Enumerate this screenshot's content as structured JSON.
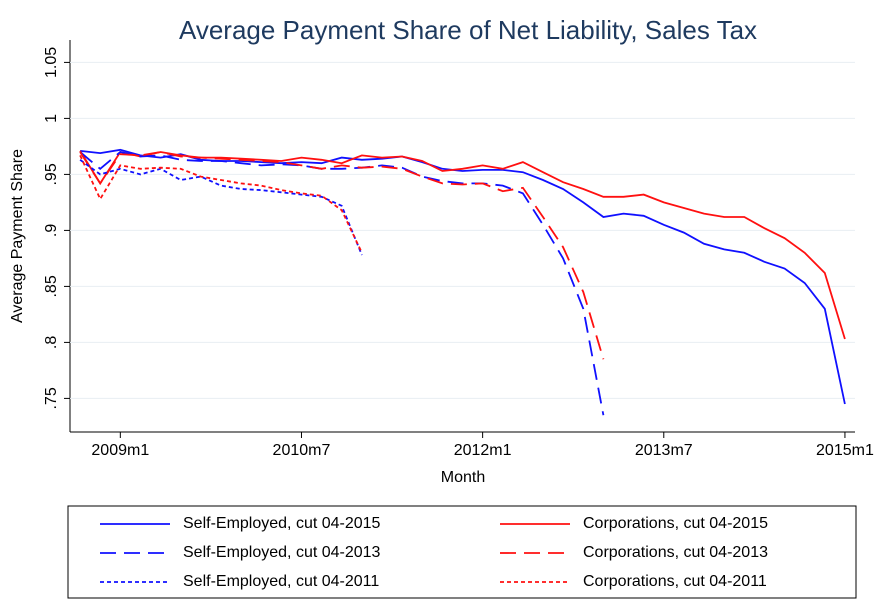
{
  "chart_data": {
    "type": "line",
    "title": "Average Payment Share of Net Liability, Sales Tax",
    "x_label": "Month",
    "y_label": "Average Payment Share",
    "x": [
      "2008m9",
      "2008m11",
      "2009m1",
      "2009m3",
      "2009m5",
      "2009m7",
      "2009m9",
      "2009m11",
      "2010m1",
      "2010m3",
      "2010m5",
      "2010m7",
      "2010m9",
      "2010m11",
      "2011m1",
      "2011m3",
      "2011m5",
      "2011m7",
      "2011m9",
      "2011m11",
      "2012m1",
      "2012m3",
      "2012m5",
      "2012m7",
      "2012m9",
      "2012m11",
      "2013m1",
      "2013m3",
      "2013m5",
      "2013m7",
      "2013m9",
      "2013m11",
      "2014m1",
      "2014m3",
      "2014m5",
      "2014m7",
      "2014m9",
      "2014m11",
      "2015m1"
    ],
    "xlim": [
      "2008m8",
      "2015m2"
    ],
    "xticks": [
      "2009m1",
      "2010m7",
      "2012m1",
      "2013m7",
      "2015m1"
    ],
    "ylim": [
      0.72,
      1.07
    ],
    "yticks": [
      {
        "value": 0.75,
        "label": ".75"
      },
      {
        "value": 0.8,
        "label": ".8"
      },
      {
        "value": 0.85,
        "label": ".85"
      },
      {
        "value": 0.9,
        "label": ".9"
      },
      {
        "value": 0.95,
        "label": ".95"
      },
      1,
      {
        "value": 1.05,
        "label": "1.05"
      }
    ],
    "grid": true,
    "legend_position": "bottom",
    "series": [
      {
        "name": "Self-Employed, cut 04-2015",
        "color": "#1010ff",
        "line_style": "solid",
        "values": [
          0.971,
          0.969,
          0.972,
          0.967,
          0.965,
          0.968,
          0.963,
          0.962,
          0.962,
          0.961,
          0.96,
          0.961,
          0.96,
          0.965,
          0.963,
          0.964,
          0.966,
          0.961,
          0.955,
          0.953,
          0.954,
          0.954,
          0.952,
          0.945,
          0.937,
          0.925,
          0.912,
          0.915,
          0.913,
          0.905,
          0.898,
          0.888,
          0.883,
          0.88,
          0.872,
          0.866,
          0.853,
          0.83,
          0.745
        ]
      },
      {
        "name": "Corporations, cut 04-2015",
        "color": "#ff1010",
        "line_style": "solid",
        "values": [
          0.971,
          0.942,
          0.97,
          0.966,
          0.97,
          0.967,
          0.965,
          0.965,
          0.964,
          0.963,
          0.962,
          0.965,
          0.963,
          0.96,
          0.967,
          0.965,
          0.966,
          0.962,
          0.953,
          0.955,
          0.958,
          0.955,
          0.961,
          0.952,
          0.943,
          0.937,
          0.93,
          0.93,
          0.932,
          0.925,
          0.92,
          0.915,
          0.912,
          0.912,
          0.902,
          0.893,
          0.88,
          0.862,
          0.803
        ]
      },
      {
        "name": "Self-Employed, cut 04-2013",
        "color": "#1010ff",
        "line_style": "longdash",
        "values": [
          0.97,
          0.955,
          0.97,
          0.966,
          0.967,
          0.963,
          0.962,
          0.962,
          0.96,
          0.958,
          0.959,
          0.958,
          0.955,
          0.955,
          0.956,
          0.958,
          0.956,
          0.948,
          0.944,
          0.942,
          0.942,
          0.94,
          0.933,
          0.905,
          0.875,
          0.83,
          0.735,
          null,
          null,
          null,
          null,
          null,
          null,
          null,
          null,
          null,
          null,
          null,
          null
        ]
      },
      {
        "name": "Corporations, cut 04-2013",
        "color": "#ff1010",
        "line_style": "longdash",
        "values": [
          0.97,
          0.942,
          0.968,
          0.967,
          0.97,
          0.966,
          0.965,
          0.964,
          0.963,
          0.962,
          0.961,
          0.958,
          0.955,
          0.958,
          0.956,
          0.957,
          0.955,
          0.948,
          0.942,
          0.941,
          0.942,
          0.935,
          0.938,
          0.912,
          0.885,
          0.845,
          0.785,
          null,
          null,
          null,
          null,
          null,
          null,
          null,
          null,
          null,
          null,
          null,
          null
        ]
      },
      {
        "name": "Self-Employed, cut 04-2011",
        "color": "#1010ff",
        "line_style": "dash",
        "values": [
          0.963,
          0.95,
          0.955,
          0.95,
          0.955,
          0.945,
          0.948,
          0.94,
          0.937,
          0.936,
          0.934,
          0.932,
          0.93,
          0.922,
          0.878,
          null,
          null,
          null,
          null,
          null,
          null,
          null,
          null,
          null,
          null,
          null,
          null,
          null,
          null,
          null,
          null,
          null,
          null,
          null,
          null,
          null,
          null,
          null,
          null
        ]
      },
      {
        "name": "Corporations, cut 04-2011",
        "color": "#ff1010",
        "line_style": "dash",
        "values": [
          0.967,
          0.928,
          0.958,
          0.955,
          0.956,
          0.955,
          0.948,
          0.945,
          0.942,
          0.94,
          0.936,
          0.933,
          0.931,
          0.918,
          0.88,
          null,
          null,
          null,
          null,
          null,
          null,
          null,
          null,
          null,
          null,
          null,
          null,
          null,
          null,
          null,
          null,
          null,
          null,
          null,
          null,
          null,
          null,
          null,
          null
        ]
      }
    ]
  }
}
